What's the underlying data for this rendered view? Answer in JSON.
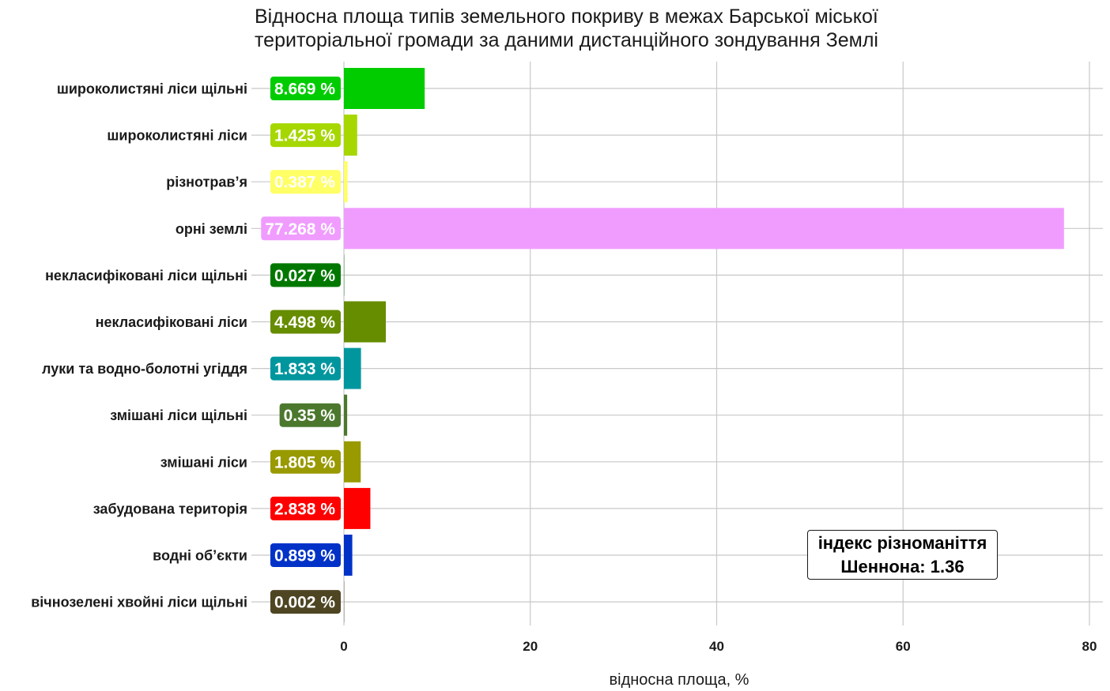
{
  "title_lines": [
    "Відносна площа типів земельного покриву в межах Барської міської",
    "територіальної громади за даними дистанційного зондування Землі"
  ],
  "xlabel": "відносна площа, %",
  "annotation": {
    "line1": "індекс різноманіття",
    "line2": "Шеннона:  1.36"
  },
  "chart_data": {
    "type": "bar",
    "orientation": "horizontal",
    "title": "Відносна площа типів земельного покриву в межах Барської міської територіальної громади за даними дистанційного зондування Землі",
    "xlabel": "відносна площа, %",
    "ylabel": "",
    "xlim": [
      0,
      81
    ],
    "xticks": [
      0,
      20,
      40,
      60,
      80
    ],
    "grid": true,
    "categories": [
      "широколистяні ліси щільні",
      "широколистяні ліси",
      "різнотрав’я",
      "орні землі",
      "некласифіковані ліси щільні",
      "некласифіковані ліси",
      "луки та водно-болотні угіддя",
      "змішані ліси щільні",
      "змішані ліси",
      "забудована територія",
      "водні об’єкти",
      "вічнозелені хвойні ліси щільні"
    ],
    "values": [
      8.669,
      1.425,
      0.387,
      77.268,
      0.027,
      4.498,
      1.833,
      0.35,
      1.805,
      2.838,
      0.899,
      0.002
    ],
    "value_labels": [
      "8.669 %",
      "1.425 %",
      "0.387 %",
      "77.268 %",
      "0.027 %",
      "4.498 %",
      "1.833 %",
      "0.35 %",
      "1.805 %",
      "2.838 %",
      "0.899 %",
      "0.002 %"
    ],
    "colors": [
      "#00cc00",
      "#a6d700",
      "#ffff66",
      "#f09cff",
      "#007800",
      "#668c00",
      "#00969e",
      "#4b782d",
      "#999900",
      "#ff0000",
      "#0032c8",
      "#4e4623"
    ],
    "label_text_colors": [
      "#ffffff",
      "#ffffff",
      "#ffffff",
      "#ffffff",
      "#ffffff",
      "#ffffff",
      "#ffffff",
      "#ffffff",
      "#ffffff",
      "#ffffff",
      "#ffffff",
      "#ffffff"
    ]
  }
}
